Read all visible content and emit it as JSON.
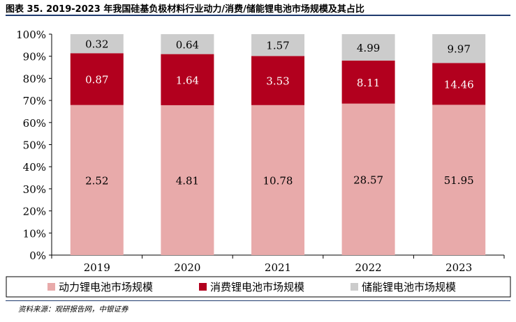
{
  "figure_title": "图表 35. 2019-2023 年我国硅基负极材料行业动力/消费/储能锂电池市场规模及其占比",
  "source_note": "资料来源：观研报告网，中银证券",
  "chart_data": {
    "type": "bar",
    "stacked": true,
    "percent_stacked": true,
    "categories": [
      "2019",
      "2020",
      "2021",
      "2022",
      "2023"
    ],
    "series": [
      {
        "name": "动力锂电池市场规模",
        "values": [
          2.52,
          4.81,
          10.78,
          28.57,
          51.95
        ],
        "color": "#e8aaaa"
      },
      {
        "name": "消费锂电池市场规模",
        "values": [
          0.87,
          1.64,
          3.53,
          8.11,
          14.46
        ],
        "color": "#b2001e"
      },
      {
        "name": "储能锂电池市场规模",
        "values": [
          0.32,
          0.64,
          1.57,
          4.99,
          9.97
        ],
        "color": "#cccccc"
      }
    ],
    "y_ticks": [
      "0%",
      "10%",
      "20%",
      "30%",
      "40%",
      "50%",
      "60%",
      "70%",
      "80%",
      "90%",
      "100%"
    ],
    "ylim": [
      0,
      100
    ],
    "grid": false,
    "legend_position": "bottom"
  }
}
